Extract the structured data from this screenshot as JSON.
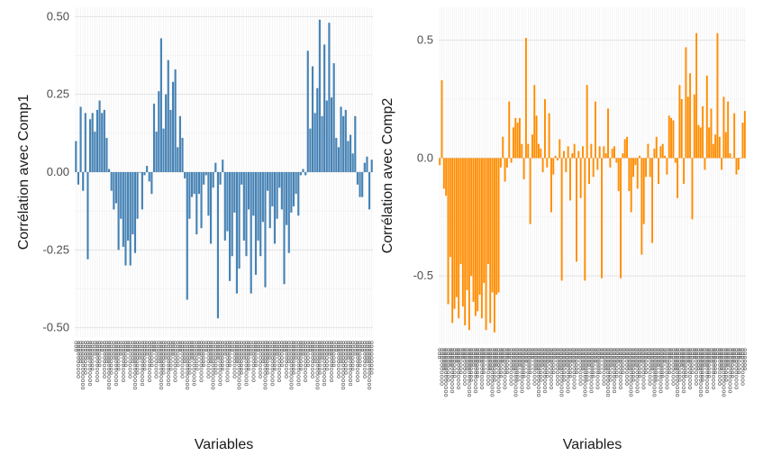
{
  "chart_data": [
    {
      "type": "bar",
      "panel": "left",
      "ylabel": "Corrélation avec Comp1",
      "xlabel": "Variables",
      "ylim": [
        -0.53,
        0.53
      ],
      "yticks": [
        -0.5,
        -0.25,
        0.0,
        0.25,
        0.5
      ],
      "ytick_labels": [
        "-0.50",
        "-0.25",
        "0.00",
        "0.25",
        "0.50"
      ],
      "grid": true,
      "color": "#4682B4",
      "values": [
        0.1,
        -0.04,
        0.21,
        -0.06,
        0.19,
        -0.28,
        0.17,
        0.19,
        0.13,
        0.2,
        0.23,
        0.19,
        0.2,
        0.11,
        0.01,
        -0.06,
        -0.12,
        -0.1,
        -0.25,
        -0.15,
        -0.24,
        -0.3,
        -0.22,
        -0.3,
        -0.2,
        -0.26,
        -0.15,
        0.0,
        -0.12,
        -0.01,
        0.02,
        -0.03,
        -0.07,
        0.22,
        0.13,
        0.26,
        0.43,
        0.14,
        0.25,
        0.36,
        0.2,
        0.29,
        0.33,
        0.08,
        0.18,
        0.11,
        -0.02,
        -0.41,
        -0.15,
        -0.08,
        -0.07,
        -0.2,
        -0.07,
        -0.18,
        -0.04,
        -0.01,
        -0.14,
        -0.23,
        -0.05,
        0.03,
        -0.47,
        -0.04,
        0.04,
        -0.22,
        -0.19,
        -0.35,
        -0.27,
        -0.13,
        -0.39,
        -0.31,
        -0.04,
        -0.22,
        -0.27,
        -0.12,
        -0.39,
        -0.14,
        -0.33,
        -0.22,
        -0.27,
        -0.16,
        -0.37,
        -0.06,
        -0.18,
        -0.11,
        -0.23,
        -0.15,
        -0.05,
        -0.12,
        -0.36,
        -0.17,
        -0.26,
        -0.13,
        -0.11,
        -0.07,
        -0.14,
        -0.01,
        0.01,
        -0.01,
        0.39,
        0.14,
        0.34,
        0.19,
        0.27,
        0.49,
        0.18,
        0.41,
        0.23,
        0.48,
        0.24,
        0.35,
        0.11,
        0.08,
        0.21,
        0.18,
        0.2,
        0.1,
        0.12,
        0.06,
        0.18,
        -0.04,
        -0.08,
        -0.08,
        0.03,
        0.05,
        -0.12,
        0.04
      ]
    },
    {
      "type": "bar",
      "panel": "right",
      "ylabel": "Corrélation avec Comp2",
      "xlabel": "Variables",
      "ylim": [
        -0.79,
        0.64
      ],
      "yticks": [
        -0.5,
        0.0,
        0.5
      ],
      "ytick_labels": [
        "-0.5",
        "0.0",
        "0.5"
      ],
      "grid": true,
      "color": "#FF8C00",
      "values": [
        -0.03,
        0.33,
        -0.13,
        -0.16,
        -0.62,
        -0.42,
        -0.7,
        -0.64,
        -0.59,
        -0.68,
        -0.45,
        -0.63,
        -0.71,
        -0.56,
        -0.73,
        -0.5,
        -0.61,
        -0.67,
        -0.65,
        -0.58,
        -0.68,
        -0.53,
        -0.73,
        -0.45,
        -0.7,
        -0.57,
        -0.74,
        -0.58,
        -0.57,
        -0.04,
        0.09,
        -0.1,
        -0.04,
        0.24,
        -0.02,
        0.13,
        0.17,
        0.15,
        0.17,
        0.06,
        -0.09,
        0.51,
        0.06,
        -0.28,
        0.1,
        0.31,
        0.18,
        0.06,
        0.04,
        -0.06,
        0.25,
        -0.04,
        0.19,
        -0.23,
        -0.07,
        0.01,
        -0.01,
        0.08,
        -0.52,
        0.03,
        -0.06,
        0.05,
        -0.18,
        0.02,
        0.06,
        -0.44,
        0.03,
        -0.17,
        0.05,
        -0.52,
        0.31,
        -0.11,
        0.06,
        -0.08,
        0.24,
        -0.05,
        0.05,
        -0.51,
        0.05,
        0.02,
        0.21,
        -0.04,
        0.04,
        0.05,
        -0.02,
        -0.14,
        -0.51,
        0.02,
        0.08,
        0.09,
        -0.14,
        -0.23,
        -0.08,
        -0.03,
        -0.13,
        0.01,
        -0.41,
        -0.28,
        -0.08,
        0.06,
        -0.08,
        -0.36,
        0.04,
        0.09,
        -0.11,
        0.05,
        0.06,
        0.01,
        -0.07,
        0.18,
        0.17,
        0.16,
        -0.02,
        -0.17,
        0.31,
        0.25,
        -0.11,
        0.47,
        0.26,
        0.36,
        -0.26,
        0.27,
        0.53,
        0.14,
        0.13,
        0.22,
        -0.05,
        0.35,
        0.13,
        0.21,
        0.06,
        0.1,
        0.53,
        0.09,
        -0.05,
        0.26,
        0.11,
        0.24,
        0.02,
        0.0,
        0.19,
        -0.07,
        -0.05,
        0.0,
        0.15,
        0.2
      ]
    }
  ]
}
